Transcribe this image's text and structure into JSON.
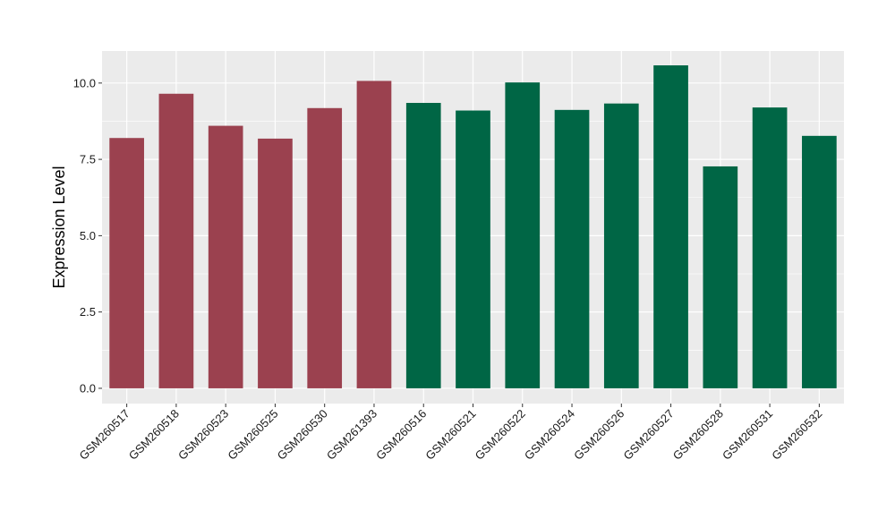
{
  "chart_data": {
    "type": "bar",
    "title": "",
    "xlabel": "",
    "ylabel": "Expression Level",
    "ylim": [
      -0.5,
      11.05
    ],
    "yticks": [
      0.0,
      2.5,
      5.0,
      7.5,
      10.0
    ],
    "ytick_labels": [
      "0.0",
      "2.5",
      "5.0",
      "7.5",
      "10.0"
    ],
    "grid": true,
    "legend": "none",
    "categories": [
      "GSM260517",
      "GSM260518",
      "GSM260523",
      "GSM260525",
      "GSM260530",
      "GSM261393",
      "GSM260516",
      "GSM260521",
      "GSM260522",
      "GSM260524",
      "GSM260526",
      "GSM260527",
      "GSM260528",
      "GSM260531",
      "GSM260532"
    ],
    "values": [
      8.2,
      9.65,
      8.6,
      8.18,
      9.18,
      10.07,
      9.35,
      9.1,
      10.02,
      9.12,
      9.33,
      10.58,
      7.27,
      9.2,
      8.27
    ],
    "bar_colors": [
      "#9b414f",
      "#9b414f",
      "#9b414f",
      "#9b414f",
      "#9b414f",
      "#9b414f",
      "#006645",
      "#006645",
      "#006645",
      "#006645",
      "#006645",
      "#006645",
      "#006645",
      "#006645",
      "#006645"
    ],
    "panel_background": "#ebebeb",
    "grid_color": "#ffffff"
  }
}
